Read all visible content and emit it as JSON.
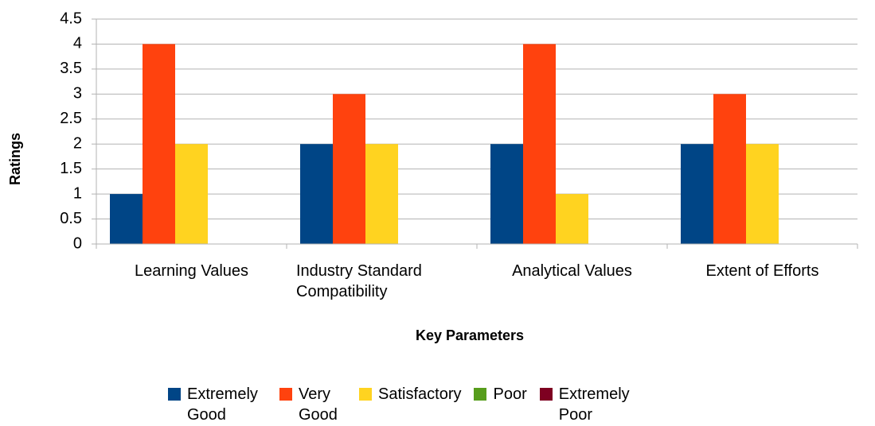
{
  "chart_data": {
    "type": "bar",
    "xlabel": "Key Parameters",
    "ylabel": "Ratings",
    "categories": [
      "Learning Values",
      "Industry Standard Compatibility",
      "Analytical Values",
      "Extent of Efforts"
    ],
    "series": [
      {
        "name": "Extremely Good",
        "color": "#004586",
        "values": [
          1,
          2,
          2,
          2
        ]
      },
      {
        "name": "Very Good",
        "color": "#ff420e",
        "values": [
          4,
          3,
          4,
          3
        ]
      },
      {
        "name": "Satisfactory",
        "color": "#ffd320",
        "values": [
          2,
          2,
          1,
          2
        ]
      },
      {
        "name": "Poor",
        "color": "#579d1c",
        "values": [
          0,
          0,
          0,
          0
        ]
      },
      {
        "name": "Extremely Poor",
        "color": "#7e0021",
        "values": [
          0,
          0,
          0,
          0
        ]
      }
    ],
    "ylim": [
      0,
      4.5
    ],
    "yticks": [
      0,
      0.5,
      1,
      1.5,
      2,
      2.5,
      3,
      3.5,
      4,
      4.5
    ],
    "grid": true,
    "legend": "bottom"
  }
}
